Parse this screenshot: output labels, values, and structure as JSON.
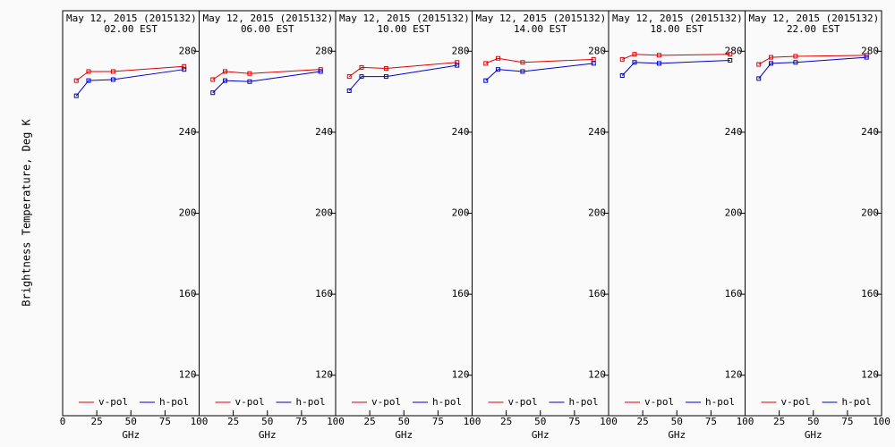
{
  "chart_data": [
    {
      "type": "line",
      "title": "May 12, 2015 (2015132)",
      "subtitle": "02.00 EST",
      "xlabel": "GHz",
      "ylabel": "Brightness Temperature, Deg K",
      "x": [
        10,
        19,
        37,
        89
      ],
      "xlim": [
        0,
        100
      ],
      "xticks": [
        0,
        25,
        50,
        75,
        100
      ],
      "ylim": [
        100,
        300
      ],
      "yticks": [
        120,
        160,
        200,
        240,
        280
      ],
      "series": [
        {
          "name": "v-pol",
          "color": "#e00000",
          "values": [
            265.5,
            270,
            270,
            272.5
          ]
        },
        {
          "name": "h-pol",
          "color": "#0000d0",
          "values": [
            258,
            265.5,
            266,
            271
          ]
        }
      ]
    },
    {
      "type": "line",
      "title": "May 12, 2015 (2015132)",
      "subtitle": "06.00 EST",
      "xlabel": "GHz",
      "x": [
        10,
        19,
        37,
        89
      ],
      "xlim": [
        0,
        100
      ],
      "xticks": [
        25,
        50,
        75,
        100
      ],
      "ylim": [
        100,
        300
      ],
      "yticks": [
        120,
        160,
        200,
        240,
        280
      ],
      "series": [
        {
          "name": "v-pol",
          "color": "#e00000",
          "values": [
            266,
            270,
            269,
            271
          ]
        },
        {
          "name": "h-pol",
          "color": "#0000d0",
          "values": [
            259.5,
            265.5,
            265,
            270
          ]
        }
      ]
    },
    {
      "type": "line",
      "title": "May 12, 2015 (2015132)",
      "subtitle": "10.00 EST",
      "xlabel": "GHz",
      "x": [
        10,
        19,
        37,
        89
      ],
      "xlim": [
        0,
        100
      ],
      "xticks": [
        25,
        50,
        75,
        100
      ],
      "ylim": [
        100,
        300
      ],
      "yticks": [
        120,
        160,
        200,
        240,
        280
      ],
      "series": [
        {
          "name": "v-pol",
          "color": "#e00000",
          "values": [
            267.5,
            272,
            271.5,
            274.5
          ]
        },
        {
          "name": "h-pol",
          "color": "#0000d0",
          "values": [
            260.5,
            267.5,
            267.5,
            273
          ]
        }
      ]
    },
    {
      "type": "line",
      "title": "May 12, 2015 (2015132)",
      "subtitle": "14.00 EST",
      "xlabel": "GHz",
      "x": [
        10,
        19,
        37,
        89
      ],
      "xlim": [
        0,
        100
      ],
      "xticks": [
        25,
        50,
        75,
        100
      ],
      "ylim": [
        100,
        300
      ],
      "yticks": [
        120,
        160,
        200,
        240,
        280
      ],
      "series": [
        {
          "name": "v-pol",
          "color": "#e00000",
          "values": [
            274,
            276.5,
            274.5,
            276
          ]
        },
        {
          "name": "h-pol",
          "color": "#0000d0",
          "values": [
            265.5,
            271,
            270,
            274
          ]
        }
      ]
    },
    {
      "type": "line",
      "title": "May 12, 2015 (2015132)",
      "subtitle": "18.00 EST",
      "xlabel": "GHz",
      "x": [
        10,
        19,
        37,
        89
      ],
      "xlim": [
        0,
        100
      ],
      "xticks": [
        25,
        50,
        75,
        100
      ],
      "ylim": [
        100,
        300
      ],
      "yticks": [
        120,
        160,
        200,
        240,
        280
      ],
      "series": [
        {
          "name": "v-pol",
          "color": "#e00000",
          "values": [
            276,
            278.5,
            278,
            278.5
          ]
        },
        {
          "name": "h-pol",
          "color": "#0000d0",
          "values": [
            268,
            274.5,
            274,
            275.5
          ]
        }
      ]
    },
    {
      "type": "line",
      "title": "May 12, 2015 (2015132)",
      "subtitle": "22.00 EST",
      "xlabel": "GHz",
      "x": [
        10,
        19,
        37,
        89
      ],
      "xlim": [
        0,
        100
      ],
      "xticks": [
        25,
        50,
        75,
        100
      ],
      "ylim": [
        100,
        300
      ],
      "yticks": [
        120,
        160,
        200,
        240,
        280
      ],
      "series": [
        {
          "name": "v-pol",
          "color": "#e00000",
          "values": [
            273.5,
            277,
            277.5,
            278
          ]
        },
        {
          "name": "h-pol",
          "color": "#0000d0",
          "values": [
            266.5,
            274,
            274.5,
            277
          ]
        }
      ]
    }
  ]
}
